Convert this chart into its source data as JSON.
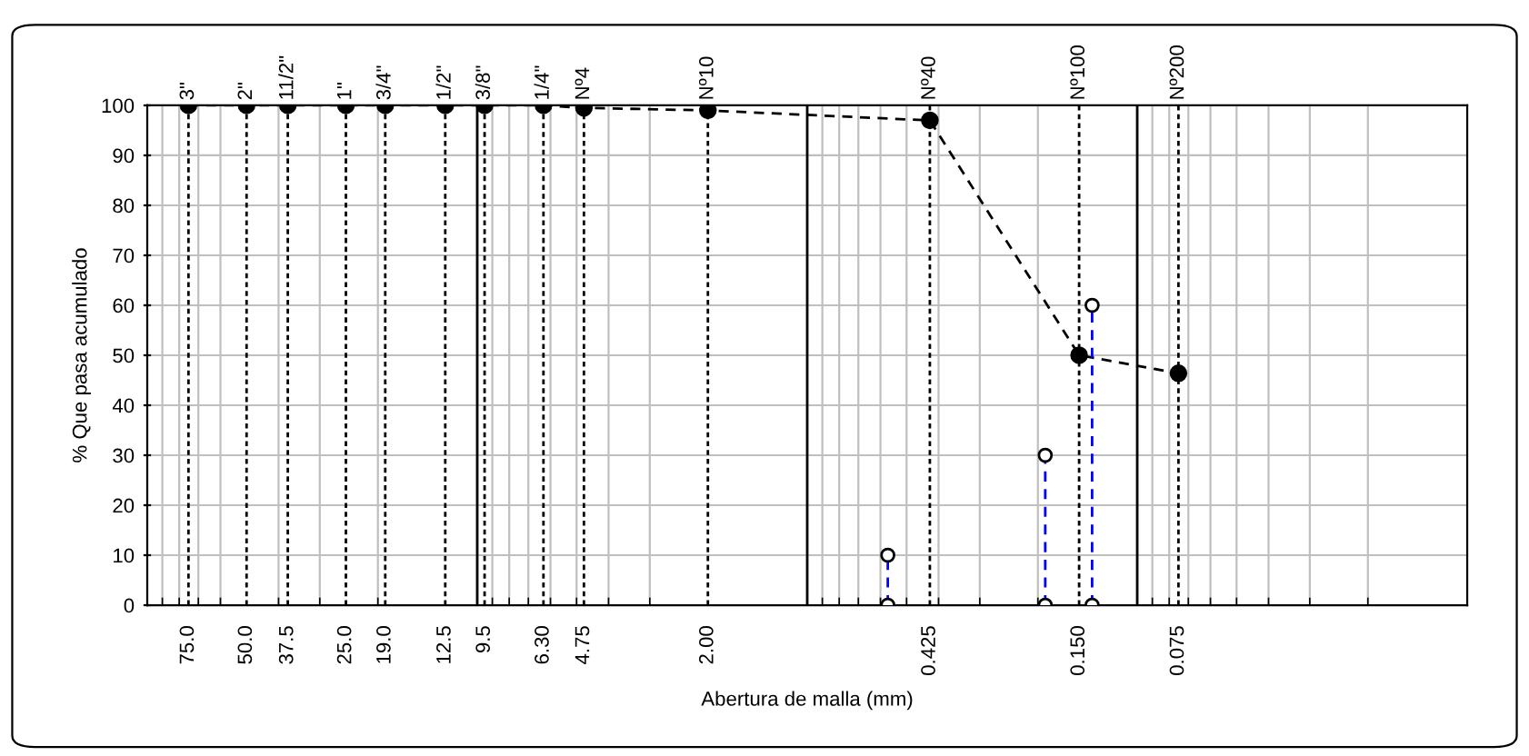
{
  "chart_data": {
    "type": "line",
    "xlabel": "Abertura de malla (mm)",
    "ylabel": "% Que pasa acumulado",
    "log": "x",
    "xlim": [
      100,
      0.01
    ],
    "ylim": [
      0,
      100
    ],
    "yticks": [
      0,
      10,
      20,
      30,
      40,
      50,
      60,
      70,
      80,
      90,
      100
    ],
    "xticks": [
      {
        "value": 75,
        "label": "75.0"
      },
      {
        "value": 50,
        "label": "50.0"
      },
      {
        "value": 37.5,
        "label": "37.5"
      },
      {
        "value": 25,
        "label": "25.0"
      },
      {
        "value": 19,
        "label": "19.0"
      },
      {
        "value": 12.5,
        "label": "12.5"
      },
      {
        "value": 9.5,
        "label": "9.5"
      },
      {
        "value": 6.3,
        "label": "6.30"
      },
      {
        "value": 4.75,
        "label": "4.75"
      },
      {
        "value": 2,
        "label": "2.00"
      },
      {
        "value": 0.425,
        "label": "0.425"
      },
      {
        "value": 0.15,
        "label": "0.150"
      },
      {
        "value": 0.075,
        "label": "0.075"
      }
    ],
    "annotations": [
      {
        "text": "3\"",
        "x": 75,
        "y": 100
      },
      {
        "text": "2\"",
        "x": 50,
        "y": 100
      },
      {
        "text": "11/2\"",
        "x": 37.5,
        "y": 100
      },
      {
        "text": "1\"",
        "x": 25,
        "y": 100
      },
      {
        "text": "3/4\"",
        "x": 19,
        "y": 100
      },
      {
        "text": "1/2\"",
        "x": 12.5,
        "y": 100
      },
      {
        "text": "3/8\"",
        "x": 9.5,
        "y": 100
      },
      {
        "text": "1/4\"",
        "x": 6.3,
        "y": 100
      },
      {
        "text": "Nº4",
        "x": 4.75,
        "y": 100
      },
      {
        "text": "Nº10",
        "x": 2,
        "y": 100
      },
      {
        "text": "Nº40",
        "x": 0.425,
        "y": 100
      },
      {
        "text": "Nº100",
        "x": 0.15,
        "y": 100
      },
      {
        "text": "Nº200",
        "x": 0.075,
        "y": 100
      }
    ],
    "grid": true,
    "series": [
      {
        "x": [
          75,
          50,
          37.5,
          25,
          19,
          12.5,
          9.5,
          6.3,
          4.75,
          2,
          0.425,
          0.15,
          0.075
        ],
        "values": [
          100,
          100,
          100,
          100,
          100,
          100,
          100,
          100,
          99.5,
          99,
          97,
          50,
          46.4
        ],
        "color": "#000000",
        "line_style": "dashed",
        "marker": "circle"
      },
      {
        "x": [
          0.57,
          0.57
        ],
        "values": [
          0,
          10
        ],
        "color": "#0000ff",
        "line_style": "dashed",
        "marker": "circle"
      },
      {
        "x": [
          0.19,
          0.19
        ],
        "values": [
          0,
          30
        ],
        "color": "#0000ff",
        "line_style": "dashed",
        "marker": "circle"
      },
      {
        "x": [
          0.137,
          0.137
        ],
        "values": [
          0,
          60
        ],
        "color": "#0000ff",
        "line_style": "dashed",
        "marker": "circle"
      }
    ],
    "ref_lines": [
      {
        "axis": "x",
        "value": 75,
        "color": "#000000",
        "line_style": "dotted"
      },
      {
        "axis": "x",
        "value": 50,
        "color": "#000000",
        "line_style": "dotted"
      },
      {
        "axis": "x",
        "value": 37.5,
        "color": "#000000",
        "line_style": "dotted"
      },
      {
        "axis": "x",
        "value": 25,
        "color": "#000000",
        "line_style": "dotted"
      },
      {
        "axis": "x",
        "value": 19,
        "color": "#000000",
        "line_style": "dotted"
      },
      {
        "axis": "x",
        "value": 12.5,
        "color": "#000000",
        "line_style": "dotted"
      },
      {
        "axis": "x",
        "value": 9.5,
        "color": "#000000",
        "line_style": "dotted"
      },
      {
        "axis": "x",
        "value": 6.3,
        "color": "#000000",
        "line_style": "dotted"
      },
      {
        "axis": "x",
        "value": 4.75,
        "color": "#000000",
        "line_style": "dotted"
      },
      {
        "axis": "x",
        "value": 2,
        "color": "#000000",
        "line_style": "dotted"
      },
      {
        "axis": "x",
        "value": 0.425,
        "color": "#000000",
        "line_style": "dotted"
      },
      {
        "axis": "x",
        "value": 0.15,
        "color": "#000000",
        "line_style": "dotted"
      },
      {
        "axis": "x",
        "value": 0.075,
        "color": "#000000",
        "line_style": "dotted"
      },
      {
        "axis": "x",
        "value": 10,
        "color": "#000000",
        "line_style": "solid"
      },
      {
        "axis": "x",
        "value": 1,
        "color": "#000000",
        "line_style": "solid"
      },
      {
        "axis": "x",
        "value": 0.1,
        "color": "#000000",
        "line_style": "solid"
      }
    ]
  }
}
